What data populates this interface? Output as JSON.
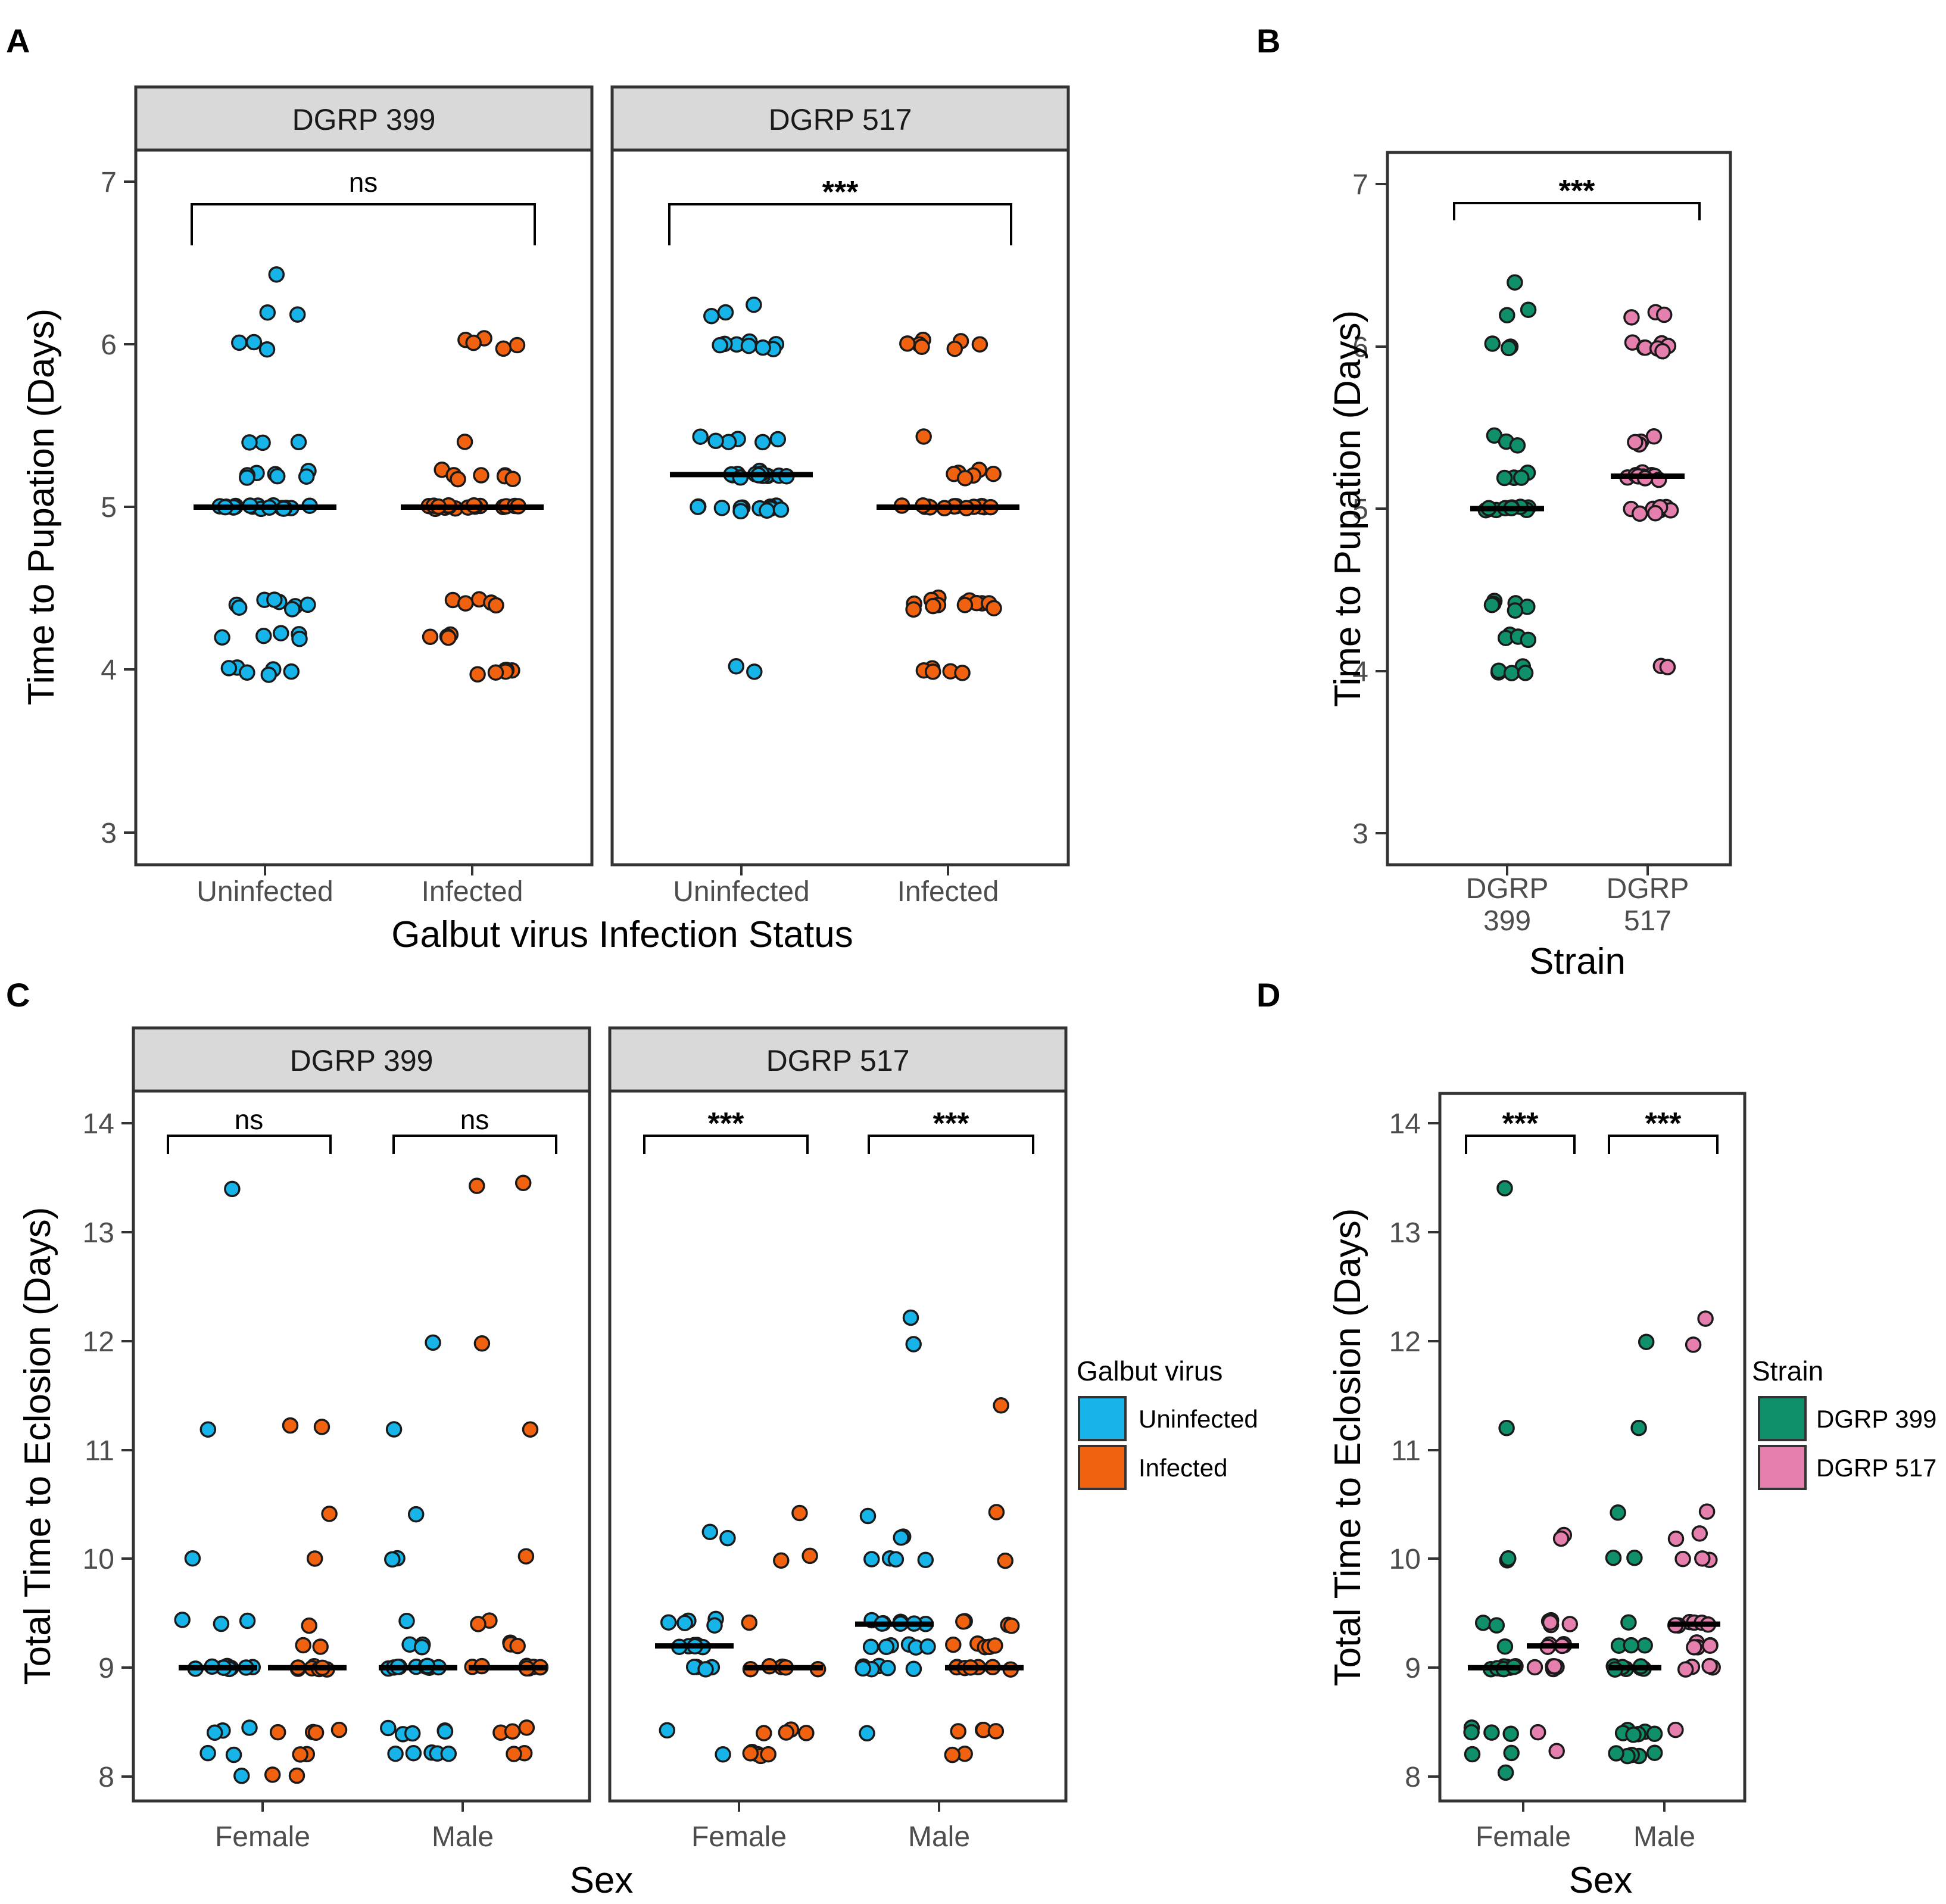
{
  "colors": {
    "uninfected": "#16B4E8",
    "infected": "#F0620F",
    "dgrp399": "#10906A",
    "dgrp517": "#E57FAE",
    "strip_fill": "#D9D9D9",
    "frame": "#333333"
  },
  "panels": {
    "A": {
      "letter": "A"
    },
    "B": {
      "letter": "B"
    },
    "C": {
      "letter": "C"
    },
    "D": {
      "letter": "D"
    }
  },
  "chart_data": [
    {
      "id": "A",
      "type": "scatter",
      "facets": [
        "DGRP 399",
        "DGRP 517"
      ],
      "categories": [
        "Uninfected",
        "Infected"
      ],
      "xlabel": "Galbut virus Infection Status",
      "ylabel": "Time to Pupation (Days)",
      "ylim": [
        2.8,
        7.2
      ],
      "yticks": [
        3,
        4,
        5,
        6,
        7
      ],
      "significance": [
        "ns",
        "***"
      ],
      "series": [
        {
          "facet": "DGRP 399",
          "group": "Uninfected",
          "median": 5.0,
          "values": [
            6.44,
            6.2,
            6.18,
            6.02,
            6.0,
            5.97,
            5.4,
            5.4,
            5.4,
            5.22,
            5.2,
            5.2,
            5.2,
            5.2,
            5.18,
            5.18,
            5.0,
            5.0,
            5.0,
            5.0,
            5.0,
            5.0,
            5.0,
            5.0,
            5.0,
            5.0,
            5.0,
            5.0,
            5.0,
            5.0,
            5.0,
            5.0,
            5.0,
            5.0,
            5.0,
            4.44,
            4.42,
            4.42,
            4.4,
            4.4,
            4.4,
            4.38,
            4.38,
            4.22,
            4.22,
            4.2,
            4.2,
            4.2,
            4.02,
            4.0,
            4.0,
            3.98,
            3.98,
            3.98
          ]
        },
        {
          "facet": "DGRP 399",
          "group": "Infected",
          "median": 5.0,
          "values": [
            6.03,
            6.02,
            6.0,
            6.0,
            5.98,
            5.4,
            5.22,
            5.2,
            5.2,
            5.2,
            5.2,
            5.18,
            5.18,
            5.0,
            5.0,
            5.0,
            5.0,
            5.0,
            5.0,
            5.0,
            5.0,
            5.0,
            5.0,
            5.0,
            5.0,
            5.0,
            5.0,
            5.0,
            5.0,
            5.0,
            4.44,
            4.42,
            4.42,
            4.4,
            4.4,
            4.22,
            4.2,
            4.2,
            4.2,
            4.0,
            4.0,
            4.0,
            3.98,
            3.98,
            3.98
          ]
        },
        {
          "facet": "DGRP 517",
          "group": "Uninfected",
          "median": 5.2,
          "values": [
            6.24,
            6.2,
            6.18,
            6.02,
            6.0,
            6.0,
            6.0,
            6.0,
            5.98,
            5.98,
            5.98,
            5.44,
            5.42,
            5.42,
            5.4,
            5.4,
            5.4,
            5.22,
            5.2,
            5.2,
            5.2,
            5.2,
            5.2,
            5.2,
            5.2,
            5.2,
            5.2,
            5.2,
            5.2,
            5.18,
            5.18,
            5.0,
            5.0,
            5.0,
            5.0,
            5.0,
            5.0,
            5.0,
            5.0,
            5.0,
            4.98,
            4.98,
            4.98,
            4.02,
            3.98
          ]
        },
        {
          "facet": "DGRP 517",
          "group": "Infected",
          "median": 5.0,
          "values": [
            6.02,
            6.02,
            6.0,
            6.0,
            6.0,
            5.98,
            5.98,
            5.44,
            5.22,
            5.2,
            5.2,
            5.2,
            5.2,
            5.18,
            5.0,
            5.0,
            5.0,
            5.0,
            5.0,
            5.0,
            5.0,
            5.0,
            5.0,
            5.0,
            5.0,
            5.0,
            5.0,
            5.0,
            5.0,
            5.0,
            4.44,
            4.42,
            4.42,
            4.42,
            4.4,
            4.4,
            4.4,
            4.4,
            4.4,
            4.4,
            4.4,
            4.38,
            4.38,
            4.02,
            4.0,
            4.0,
            3.98,
            3.98
          ]
        }
      ]
    },
    {
      "id": "B",
      "type": "scatter",
      "categories": [
        "DGRP 399",
        "DGRP 517"
      ],
      "category_lines": [
        [
          "DGRP",
          "399"
        ],
        [
          "DGRP",
          "517"
        ]
      ],
      "xlabel": "Strain",
      "ylabel": "Time to Pupation (Days)",
      "ylim": [
        2.8,
        7.2
      ],
      "yticks": [
        3,
        4,
        5,
        6,
        7
      ],
      "significance": [
        "***"
      ],
      "series": [
        {
          "group": "DGRP 399",
          "median": 5.0,
          "values": [
            6.4,
            6.22,
            6.2,
            6.02,
            6.0,
            6.0,
            5.44,
            5.42,
            5.4,
            5.22,
            5.2,
            5.2,
            5.2,
            5.18,
            5.0,
            5.0,
            5.0,
            5.0,
            5.0,
            5.0,
            5.0,
            5.0,
            5.0,
            5.0,
            5.0,
            5.0,
            4.44,
            4.42,
            4.42,
            4.4,
            4.4,
            4.38,
            4.22,
            4.2,
            4.2,
            4.2,
            4.02,
            4.0,
            4.0,
            3.98,
            3.98
          ]
        },
        {
          "group": "DGRP 517",
          "median": 5.2,
          "values": [
            6.22,
            6.2,
            6.18,
            6.02,
            6.02,
            6.0,
            6.0,
            6.0,
            5.98,
            5.98,
            5.44,
            5.42,
            5.4,
            5.4,
            5.22,
            5.2,
            5.2,
            5.2,
            5.2,
            5.2,
            5.2,
            5.18,
            5.18,
            5.0,
            5.0,
            5.0,
            5.0,
            5.0,
            5.0,
            5.0,
            4.98,
            4.98,
            4.04,
            4.02
          ]
        }
      ]
    },
    {
      "id": "C",
      "type": "scatter",
      "facets": [
        "DGRP 399",
        "DGRP 517"
      ],
      "categories": [
        "Female",
        "Male"
      ],
      "groups": [
        "Uninfected",
        "Infected"
      ],
      "xlabel": "Sex",
      "ylabel": "Total Time to Eclosion (Days)",
      "ylim": [
        7.85,
        14.3
      ],
      "yticks": [
        8,
        9,
        10,
        11,
        12,
        13,
        14
      ],
      "significance": [
        "ns",
        "ns",
        "***",
        "***"
      ],
      "legend": {
        "title": "Galbut virus",
        "items": [
          "Uninfected",
          "Infected"
        ]
      },
      "series": [
        {
          "facet": "DGRP 399",
          "sex": "Female",
          "group": "Uninfected",
          "median": 9.0,
          "values": [
            13.4,
            11.2,
            10.0,
            9.44,
            9.42,
            9.4,
            9.0,
            9.0,
            9.0,
            9.0,
            9.0,
            9.0,
            9.0,
            9.0,
            9.0,
            8.44,
            8.42,
            8.4,
            8.22,
            8.2,
            8.0
          ]
        },
        {
          "facet": "DGRP 399",
          "sex": "Female",
          "group": "Infected",
          "median": 9.0,
          "values": [
            11.22,
            11.22,
            10.4,
            10.0,
            9.4,
            9.2,
            9.2,
            9.0,
            9.0,
            9.0,
            9.0,
            9.0,
            9.0,
            9.0,
            8.42,
            8.4,
            8.4,
            8.4,
            8.2,
            8.2,
            8.02,
            8.02
          ]
        },
        {
          "facet": "DGRP 399",
          "sex": "Male",
          "group": "Uninfected",
          "median": 9.0,
          "values": [
            12.0,
            11.2,
            10.42,
            10.0,
            10.0,
            9.42,
            9.2,
            9.2,
            9.2,
            9.0,
            9.0,
            9.0,
            9.0,
            9.0,
            9.0,
            9.0,
            9.0,
            9.0,
            9.0,
            8.44,
            8.42,
            8.4,
            8.4,
            8.4,
            8.22,
            8.2,
            8.2,
            8.2,
            8.2
          ]
        },
        {
          "facet": "DGRP 399",
          "sex": "Male",
          "group": "Infected",
          "median": 9.0,
          "values": [
            13.44,
            13.42,
            11.98,
            11.18,
            10.02,
            9.42,
            9.4,
            9.22,
            9.2,
            9.2,
            9.2,
            9.0,
            9.0,
            9.0,
            9.0,
            9.0,
            9.0,
            9.0,
            9.0,
            8.44,
            8.42,
            8.4,
            8.2,
            8.2
          ]
        },
        {
          "facet": "DGRP 517",
          "sex": "Female",
          "group": "Uninfected",
          "median": 9.2,
          "values": [
            10.24,
            10.2,
            9.44,
            9.42,
            9.4,
            9.4,
            9.4,
            9.2,
            9.2,
            9.2,
            9.2,
            9.2,
            9.2,
            9.0,
            9.0,
            9.0,
            9.0,
            8.42,
            8.2
          ]
        },
        {
          "facet": "DGRP 517",
          "sex": "Female",
          "group": "Infected",
          "median": 9.0,
          "values": [
            10.42,
            10.02,
            10.0,
            9.4,
            9.0,
            9.0,
            9.0,
            9.0,
            9.0,
            9.0,
            8.42,
            8.4,
            8.4,
            8.4,
            8.22,
            8.2,
            8.2,
            8.2,
            8.2
          ]
        },
        {
          "facet": "DGRP 517",
          "sex": "Male",
          "group": "Uninfected",
          "median": 9.4,
          "values": [
            12.22,
            11.98,
            10.4,
            10.22,
            10.2,
            10.0,
            10.0,
            10.0,
            10.0,
            9.44,
            9.42,
            9.4,
            9.4,
            9.4,
            9.4,
            9.4,
            9.22,
            9.2,
            9.2,
            9.2,
            9.2,
            9.2,
            9.0,
            9.0,
            9.0,
            9.0,
            9.0,
            9.0,
            8.4
          ]
        },
        {
          "facet": "DGRP 517",
          "sex": "Male",
          "group": "Infected",
          "median": 9.0,
          "values": [
            11.42,
            10.42,
            9.98,
            9.44,
            9.42,
            9.4,
            9.4,
            9.22,
            9.2,
            9.2,
            9.2,
            9.2,
            9.0,
            9.0,
            9.0,
            9.0,
            9.0,
            9.0,
            9.0,
            8.44,
            8.42,
            8.4,
            8.4,
            8.22,
            8.2
          ]
        }
      ]
    },
    {
      "id": "D",
      "type": "scatter",
      "categories": [
        "Female",
        "Male"
      ],
      "groups": [
        "DGRP 399",
        "DGRP 517"
      ],
      "xlabel": "Sex",
      "ylabel": "Total Time to Eclosion (Days)",
      "ylim": [
        7.85,
        14.3
      ],
      "yticks": [
        8,
        9,
        10,
        11,
        12,
        13,
        14
      ],
      "significance": [
        "***",
        "***"
      ],
      "legend": {
        "title": "Strain",
        "items": [
          "DGRP 399",
          "DGRP 517"
        ]
      },
      "series": [
        {
          "sex": "Female",
          "group": "DGRP 399",
          "median": 9.0,
          "values": [
            13.4,
            11.2,
            10.0,
            10.0,
            9.42,
            9.4,
            9.2,
            9.0,
            9.0,
            9.0,
            9.0,
            9.0,
            9.0,
            9.0,
            9.0,
            9.0,
            8.44,
            8.42,
            8.4,
            8.4,
            8.22,
            8.2,
            8.02
          ]
        },
        {
          "sex": "Female",
          "group": "DGRP 517",
          "median": 9.2,
          "values": [
            10.22,
            10.2,
            9.44,
            9.42,
            9.4,
            9.4,
            9.4,
            9.2,
            9.2,
            9.2,
            9.2,
            9.2,
            9.0,
            9.0,
            9.0,
            9.0,
            9.0,
            8.42,
            8.22
          ]
        },
        {
          "sex": "Male",
          "group": "DGRP 399",
          "median": 9.0,
          "values": [
            12.0,
            11.2,
            10.42,
            10.0,
            10.0,
            9.42,
            9.2,
            9.2,
            9.2,
            9.0,
            9.0,
            9.0,
            9.0,
            9.0,
            9.0,
            9.0,
            9.0,
            8.44,
            8.42,
            8.4,
            8.4,
            8.4,
            8.4,
            8.22,
            8.2,
            8.2,
            8.2,
            8.2
          ]
        },
        {
          "sex": "Male",
          "group": "DGRP 517",
          "median": 9.4,
          "values": [
            12.22,
            11.98,
            10.42,
            10.22,
            10.2,
            10.0,
            10.0,
            10.0,
            9.42,
            9.4,
            9.4,
            9.4,
            9.4,
            9.4,
            9.22,
            9.2,
            9.2,
            9.2,
            9.2,
            9.0,
            9.0,
            9.0,
            9.0,
            8.42
          ]
        }
      ]
    }
  ]
}
